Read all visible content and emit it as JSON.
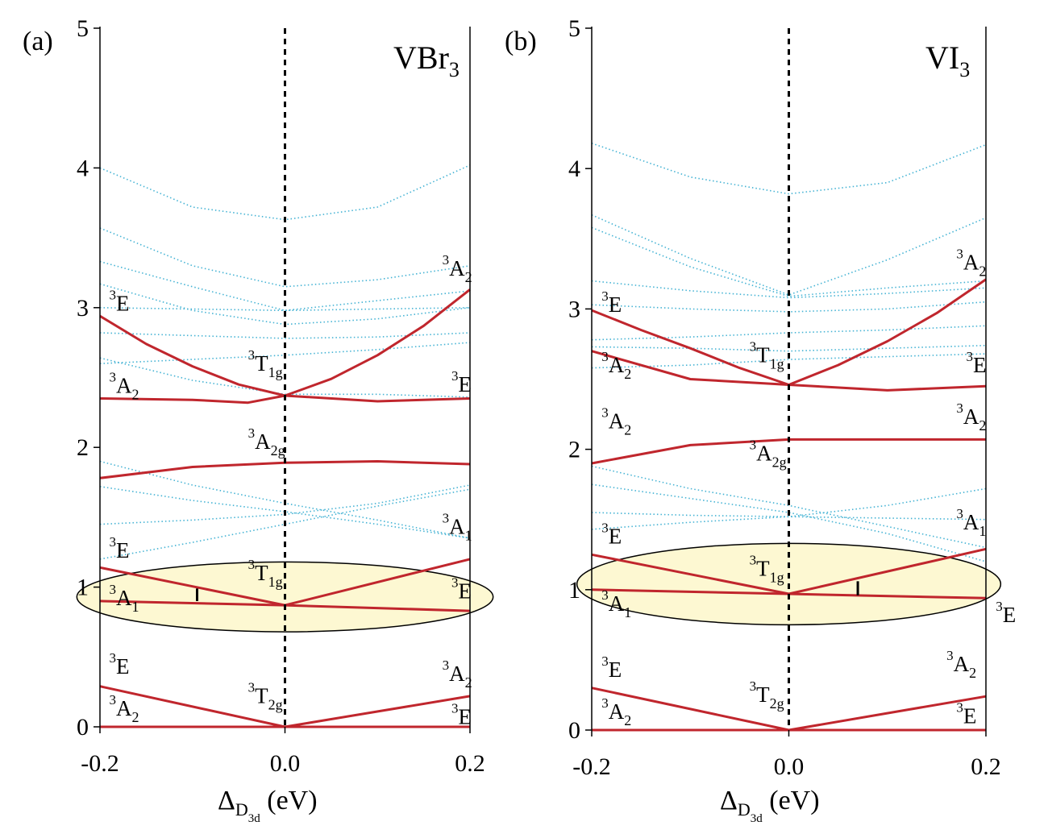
{
  "panels": [
    {
      "panel_label": "(a)",
      "compound": {
        "base": "VBr",
        "sub": "3"
      },
      "xlabel": {
        "pre": "Δ",
        "sub1": "D",
        "sub2": "3d",
        "post": " (eV)"
      },
      "xticks": [
        "-0.2",
        "0.0",
        "0.2"
      ],
      "yticks": [
        "0",
        "1",
        "2",
        "3",
        "4",
        "5"
      ],
      "labels": [
        {
          "sup": "3",
          "main": "E",
          "sub": "",
          "x": -0.19,
          "y": 2.98
        },
        {
          "sup": "3",
          "main": "A",
          "sub": "2",
          "x": -0.19,
          "y": 2.39
        },
        {
          "sup": "3",
          "main": "T",
          "sub": "1g",
          "x": -0.04,
          "y": 2.55
        },
        {
          "sup": "3",
          "main": "A",
          "sub": "2",
          "x": 0.17,
          "y": 3.23
        },
        {
          "sup": "3",
          "main": "E",
          "sub": "",
          "x": 0.18,
          "y": 2.4
        },
        {
          "sup": "3",
          "main": "A",
          "sub": "2g",
          "x": -0.04,
          "y": 1.99
        },
        {
          "sup": "3",
          "main": "A",
          "sub": "1",
          "x": 0.17,
          "y": 1.38
        },
        {
          "sup": "3",
          "main": "E",
          "sub": "",
          "x": -0.19,
          "y": 1.21
        },
        {
          "sup": "3",
          "main": "T",
          "sub": "1g",
          "x": -0.04,
          "y": 1.05
        },
        {
          "sup": "3",
          "main": "A",
          "sub": "1",
          "x": -0.19,
          "y": 0.87
        },
        {
          "sup": "3",
          "main": "E",
          "sub": "",
          "x": 0.18,
          "y": 0.92
        },
        {
          "sup": "3",
          "main": "E",
          "sub": "",
          "x": -0.19,
          "y": 0.38
        },
        {
          "sup": "3",
          "main": "A",
          "sub": "2",
          "x": -0.19,
          "y": 0.08
        },
        {
          "sup": "3",
          "main": "T",
          "sub": "2g",
          "x": -0.04,
          "y": 0.17
        },
        {
          "sup": "3",
          "main": "A",
          "sub": "2",
          "x": 0.17,
          "y": 0.33
        },
        {
          "sup": "3",
          "main": "E",
          "sub": "",
          "x": 0.18,
          "y": 0.02
        }
      ]
    },
    {
      "panel_label": "(b)",
      "compound": {
        "base": "VI",
        "sub": "3"
      },
      "xlabel": {
        "pre": "Δ",
        "sub1": "D",
        "sub2": "3d",
        "post": " (eV)"
      },
      "xticks": [
        "-0.2",
        "0.0",
        "0.2"
      ],
      "yticks": [
        "0",
        "1",
        "2",
        "3",
        "4",
        "5"
      ],
      "labels": [
        {
          "sup": "3",
          "main": "A",
          "sub": "2",
          "x": 0.17,
          "y": 3.28
        },
        {
          "sup": "3",
          "main": "E",
          "sub": "",
          "x": -0.19,
          "y": 2.98
        },
        {
          "sup": "3",
          "main": "T",
          "sub": "1g",
          "x": -0.04,
          "y": 2.62
        },
        {
          "sup": "3",
          "main": "A",
          "sub": "2",
          "x": -0.19,
          "y": 2.55
        },
        {
          "sup": "3",
          "main": "E",
          "sub": "",
          "x": 0.18,
          "y": 2.55
        },
        {
          "sup": "3",
          "main": "A",
          "sub": "2",
          "x": -0.19,
          "y": 2.15
        },
        {
          "sup": "3",
          "main": "A",
          "sub": "2",
          "x": 0.17,
          "y": 2.18
        },
        {
          "sup": "3",
          "main": "A",
          "sub": "2g",
          "x": -0.04,
          "y": 1.92
        },
        {
          "sup": "3",
          "main": "A",
          "sub": "1",
          "x": 0.17,
          "y": 1.43
        },
        {
          "sup": "3",
          "main": "E",
          "sub": "",
          "x": -0.19,
          "y": 1.33
        },
        {
          "sup": "3",
          "main": "T",
          "sub": "1g",
          "x": -0.04,
          "y": 1.1
        },
        {
          "sup": "3",
          "main": "A",
          "sub": "1",
          "x": -0.19,
          "y": 0.85
        },
        {
          "sup": "3",
          "main": "E",
          "sub": "",
          "x": 0.21,
          "y": 0.77
        },
        {
          "sup": "3",
          "main": "A",
          "sub": "2",
          "x": 0.16,
          "y": 0.42
        },
        {
          "sup": "3",
          "main": "E",
          "sub": "",
          "x": -0.19,
          "y": 0.38
        },
        {
          "sup": "3",
          "main": "T",
          "sub": "2g",
          "x": -0.04,
          "y": 0.2
        },
        {
          "sup": "3",
          "main": "A",
          "sub": "2",
          "x": -0.19,
          "y": 0.08
        },
        {
          "sup": "3",
          "main": "E",
          "sub": "",
          "x": 0.17,
          "y": 0.05
        }
      ]
    }
  ],
  "colors": {
    "red_line": "#c0262d",
    "cyan_dots": "#45b3d4",
    "highlight_fill": "#fdf8d2",
    "axis": "#000000"
  },
  "chart_data": [
    {
      "type": "line",
      "title": "VBr3",
      "xlabel": "Δ_D3d (eV)",
      "ylabel": "",
      "xlim": [
        -0.2,
        0.2
      ],
      "ylim": [
        0,
        5
      ],
      "highlight": {
        "cx": 0.0,
        "cy": 0.93,
        "rx": 0.225,
        "ry": 0.25
      },
      "marker": {
        "x": -0.095,
        "y0": 0.9,
        "y1": 0.99
      },
      "series": [
        {
          "name": "3T2g-3E(neg)",
          "style": "red",
          "x": [
            -0.2,
            0.0
          ],
          "y": [
            0.29,
            0.0
          ]
        },
        {
          "name": "3T2g-3A2(neg)",
          "style": "red",
          "x": [
            -0.2,
            0.0
          ],
          "y": [
            0.0,
            0.0
          ]
        },
        {
          "name": "3T2g-3A2(pos)",
          "style": "red",
          "x": [
            0.0,
            0.2
          ],
          "y": [
            0.0,
            0.22
          ]
        },
        {
          "name": "3T2g-3E(pos)",
          "style": "red",
          "x": [
            0.0,
            0.2
          ],
          "y": [
            0.0,
            0.0
          ]
        },
        {
          "name": "3T1g-3E(neg)",
          "style": "red",
          "x": [
            -0.2,
            0.0
          ],
          "y": [
            1.14,
            0.87
          ]
        },
        {
          "name": "3T1g-3A1(neg)",
          "style": "red",
          "x": [
            -0.2,
            0.0
          ],
          "y": [
            0.9,
            0.87
          ]
        },
        {
          "name": "3T1g-3A1(pos)",
          "style": "red",
          "x": [
            0.0,
            0.2
          ],
          "y": [
            0.87,
            1.2
          ]
        },
        {
          "name": "3T1g-3E(pos)",
          "style": "red",
          "x": [
            0.0,
            0.2
          ],
          "y": [
            0.87,
            0.83
          ]
        },
        {
          "name": "3A2g",
          "style": "red",
          "x": [
            -0.2,
            -0.1,
            0.0,
            0.1,
            0.2
          ],
          "y": [
            1.78,
            1.86,
            1.89,
            1.9,
            1.88
          ]
        },
        {
          "name": "upper-3E(neg)",
          "style": "red",
          "x": [
            -0.2,
            -0.15,
            -0.1,
            -0.05,
            0.0
          ],
          "y": [
            2.94,
            2.74,
            2.58,
            2.45,
            2.37
          ]
        },
        {
          "name": "upper-3A2(neg)",
          "style": "red",
          "x": [
            -0.2,
            -0.1,
            -0.04,
            0.0
          ],
          "y": [
            2.35,
            2.34,
            2.32,
            2.37
          ]
        },
        {
          "name": "upper-3A2(pos)",
          "style": "red",
          "x": [
            0.0,
            0.05,
            0.1,
            0.15,
            0.2
          ],
          "y": [
            2.37,
            2.49,
            2.66,
            2.87,
            3.13
          ]
        },
        {
          "name": "upper-3E(pos)",
          "style": "red",
          "x": [
            0.0,
            0.1,
            0.2
          ],
          "y": [
            2.37,
            2.33,
            2.35
          ]
        },
        {
          "name": "dot-top",
          "style": "cyan",
          "x": [
            -0.2,
            -0.1,
            0.0,
            0.1,
            0.2
          ],
          "y": [
            4.0,
            3.72,
            3.63,
            3.72,
            4.02
          ]
        },
        {
          "name": "dot-a",
          "style": "cyan",
          "x": [
            -0.2,
            -0.1,
            0.0,
            0.1,
            0.2
          ],
          "y": [
            3.57,
            3.3,
            3.15,
            3.2,
            3.3
          ]
        },
        {
          "name": "dot-b",
          "style": "cyan",
          "x": [
            -0.2,
            -0.1,
            0.0,
            0.1,
            0.2
          ],
          "y": [
            3.33,
            3.15,
            2.98,
            3.05,
            3.12
          ]
        },
        {
          "name": "dot-c",
          "style": "cyan",
          "x": [
            -0.2,
            -0.1,
            0.0,
            0.1,
            0.2
          ],
          "y": [
            3.0,
            2.99,
            2.98,
            2.99,
            3.0
          ]
        },
        {
          "name": "dot-d",
          "style": "cyan",
          "x": [
            -0.2,
            -0.1,
            0.0,
            0.1,
            0.2
          ],
          "y": [
            3.17,
            2.98,
            2.88,
            2.92,
            3.0
          ]
        },
        {
          "name": "dot-e",
          "style": "cyan",
          "x": [
            -0.2,
            -0.1,
            0.0,
            0.1,
            0.2
          ],
          "y": [
            2.82,
            2.8,
            2.78,
            2.79,
            2.82
          ]
        },
        {
          "name": "dot-f",
          "style": "cyan",
          "x": [
            -0.2,
            -0.1,
            0.0,
            0.1,
            0.2
          ],
          "y": [
            2.6,
            2.63,
            2.66,
            2.7,
            2.75
          ]
        },
        {
          "name": "dot-g",
          "style": "cyan",
          "x": [
            -0.2,
            -0.1,
            0.0,
            0.1,
            0.2
          ],
          "y": [
            2.64,
            2.48,
            2.38,
            2.38,
            2.36
          ]
        },
        {
          "name": "dot-h",
          "style": "cyan",
          "x": [
            -0.2,
            -0.1,
            0.0,
            0.1,
            0.2
          ],
          "y": [
            1.9,
            1.73,
            1.6,
            1.48,
            1.35
          ]
        },
        {
          "name": "dot-i",
          "style": "cyan",
          "x": [
            -0.2,
            -0.1,
            0.0,
            0.1,
            0.2
          ],
          "y": [
            1.45,
            1.48,
            1.52,
            1.6,
            1.73
          ]
        },
        {
          "name": "dot-j",
          "style": "cyan",
          "x": [
            -0.2,
            -0.1,
            0.0,
            0.1,
            0.2
          ],
          "y": [
            1.72,
            1.62,
            1.54,
            1.45,
            1.35
          ]
        },
        {
          "name": "dot-k",
          "style": "cyan",
          "x": [
            -0.2,
            -0.1,
            0.0,
            0.1,
            0.2
          ],
          "y": [
            1.2,
            1.32,
            1.45,
            1.58,
            1.7
          ]
        }
      ]
    },
    {
      "type": "line",
      "title": "VI3",
      "xlabel": "Δ_D3d (eV)",
      "ylabel": "",
      "xlim": [
        -0.2,
        0.2
      ],
      "ylim": [
        0,
        5
      ],
      "highlight": {
        "cx": 0.0,
        "cy": 1.04,
        "rx": 0.215,
        "ry": 0.29
      },
      "marker": {
        "x": 0.07,
        "y0": 0.96,
        "y1": 1.06
      },
      "series": [
        {
          "name": "3T2g-3E(neg)",
          "style": "red",
          "x": [
            -0.2,
            0.0
          ],
          "y": [
            0.3,
            0.0
          ]
        },
        {
          "name": "3T2g-3A2(neg)",
          "style": "red",
          "x": [
            -0.2,
            0.0
          ],
          "y": [
            0.0,
            0.0
          ]
        },
        {
          "name": "3T2g-3A2(pos)",
          "style": "red",
          "x": [
            0.0,
            0.2
          ],
          "y": [
            0.0,
            0.24
          ]
        },
        {
          "name": "3T2g-3E(pos)",
          "style": "red",
          "x": [
            0.0,
            0.2
          ],
          "y": [
            0.0,
            0.0
          ]
        },
        {
          "name": "3T1g-3E(neg)",
          "style": "red",
          "x": [
            -0.2,
            0.0
          ],
          "y": [
            1.25,
            0.97
          ]
        },
        {
          "name": "3T1g-3A1(neg)",
          "style": "red",
          "x": [
            -0.2,
            0.0
          ],
          "y": [
            1.0,
            0.97
          ]
        },
        {
          "name": "3T1g-3A1(pos)",
          "style": "red",
          "x": [
            0.0,
            0.2
          ],
          "y": [
            0.97,
            1.29
          ]
        },
        {
          "name": "3T1g-3E(pos)",
          "style": "red",
          "x": [
            0.0,
            0.2
          ],
          "y": [
            0.97,
            0.94
          ]
        },
        {
          "name": "3A2g",
          "style": "red",
          "x": [
            -0.2,
            -0.1,
            0.0,
            0.1,
            0.2
          ],
          "y": [
            1.9,
            2.03,
            2.07,
            2.07,
            2.07
          ]
        },
        {
          "name": "upper-3E(neg)",
          "style": "red",
          "x": [
            -0.2,
            -0.15,
            -0.1,
            -0.05,
            0.0
          ],
          "y": [
            2.99,
            2.85,
            2.72,
            2.58,
            2.46
          ]
        },
        {
          "name": "upper-3A2(neg)",
          "style": "red",
          "x": [
            -0.2,
            -0.1,
            0.0
          ],
          "y": [
            2.7,
            2.5,
            2.46
          ]
        },
        {
          "name": "upper-3A2(pos)",
          "style": "red",
          "x": [
            0.0,
            0.05,
            0.1,
            0.15,
            0.2
          ],
          "y": [
            2.46,
            2.6,
            2.77,
            2.97,
            3.21
          ]
        },
        {
          "name": "upper-3E(pos)",
          "style": "red",
          "x": [
            0.0,
            0.1,
            0.2
          ],
          "y": [
            2.46,
            2.42,
            2.45
          ]
        },
        {
          "name": "dot-top",
          "style": "cyan",
          "x": [
            -0.2,
            -0.1,
            0.0,
            0.1,
            0.2
          ],
          "y": [
            4.18,
            3.94,
            3.82,
            3.9,
            4.17
          ]
        },
        {
          "name": "dot-a",
          "style": "cyan",
          "x": [
            -0.2,
            -0.1,
            0.0,
            0.1,
            0.2
          ],
          "y": [
            3.67,
            3.36,
            3.1,
            3.35,
            3.65
          ]
        },
        {
          "name": "dot-b",
          "style": "cyan",
          "x": [
            -0.2,
            -0.1,
            0.0,
            0.1,
            0.2
          ],
          "y": [
            3.58,
            3.3,
            3.09,
            3.15,
            3.2
          ]
        },
        {
          "name": "dot-c",
          "style": "cyan",
          "x": [
            -0.2,
            -0.1,
            0.0,
            0.1,
            0.2
          ],
          "y": [
            3.2,
            3.13,
            3.08,
            3.11,
            3.15
          ]
        },
        {
          "name": "dot-d",
          "style": "cyan",
          "x": [
            -0.2,
            -0.1,
            0.0,
            0.1,
            0.2
          ],
          "y": [
            3.03,
            3.0,
            2.98,
            3.0,
            3.05
          ]
        },
        {
          "name": "dot-e",
          "style": "cyan",
          "x": [
            -0.2,
            -0.1,
            0.0,
            0.1,
            0.2
          ],
          "y": [
            2.78,
            2.8,
            2.83,
            2.85,
            2.88
          ]
        },
        {
          "name": "dot-f",
          "style": "cyan",
          "x": [
            -0.2,
            -0.1,
            0.0,
            0.1,
            0.2
          ],
          "y": [
            2.73,
            2.72,
            2.7,
            2.72,
            2.74
          ]
        },
        {
          "name": "dot-g",
          "style": "cyan",
          "x": [
            -0.2,
            -0.1,
            0.0,
            0.1,
            0.2
          ],
          "y": [
            2.58,
            2.6,
            2.64,
            2.66,
            2.68
          ]
        },
        {
          "name": "dot-h",
          "style": "cyan",
          "x": [
            -0.2,
            -0.1,
            0.0,
            0.1,
            0.2
          ],
          "y": [
            1.88,
            1.72,
            1.6,
            1.45,
            1.3
          ]
        },
        {
          "name": "dot-i",
          "style": "cyan",
          "x": [
            -0.2,
            -0.1,
            0.0,
            0.1,
            0.2
          ],
          "y": [
            1.55,
            1.53,
            1.52,
            1.51,
            1.5
          ]
        },
        {
          "name": "dot-j",
          "style": "cyan",
          "x": [
            -0.2,
            -0.1,
            0.0,
            0.1,
            0.2
          ],
          "y": [
            1.43,
            1.48,
            1.52,
            1.6,
            1.72
          ]
        },
        {
          "name": "dot-k",
          "style": "cyan",
          "x": [
            -0.2,
            -0.1,
            0.0,
            0.1,
            0.2
          ],
          "y": [
            1.75,
            1.65,
            1.55,
            1.4,
            1.2
          ]
        }
      ]
    }
  ]
}
